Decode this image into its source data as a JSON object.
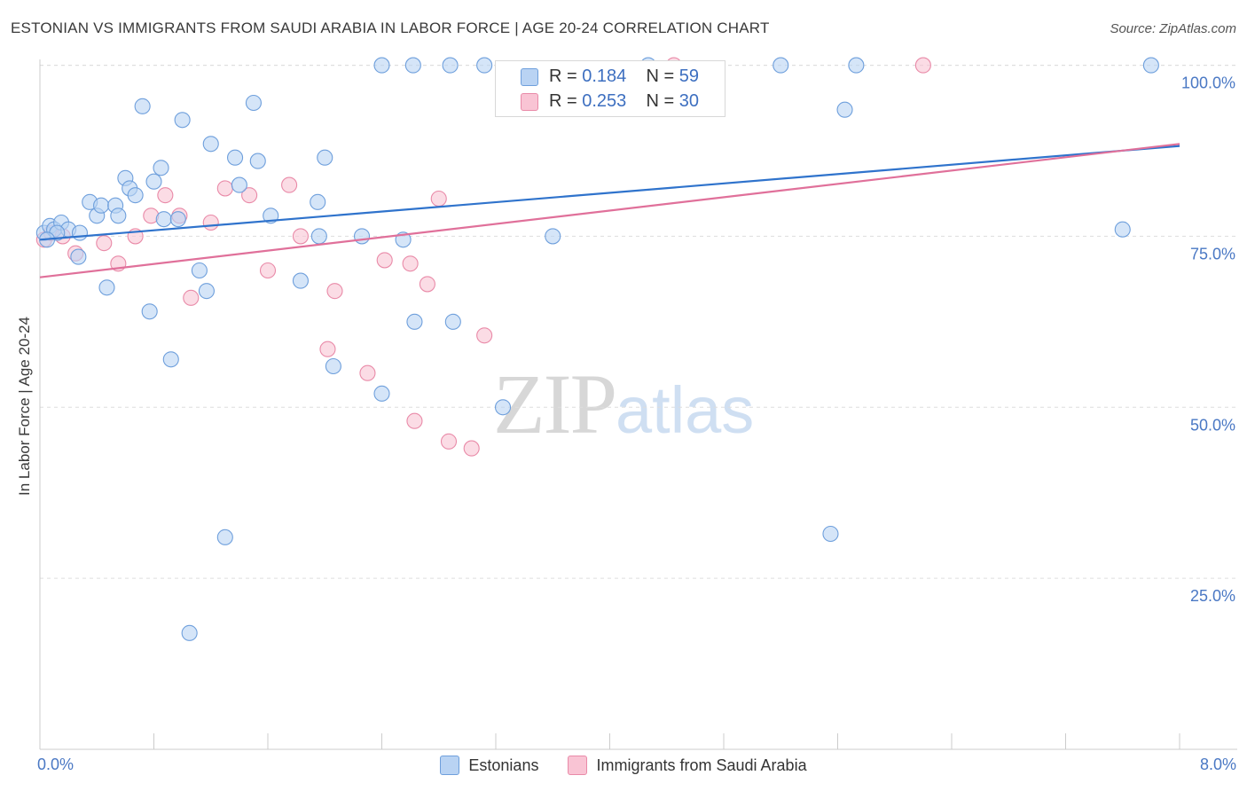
{
  "header": {
    "title": "ESTONIAN VS IMMIGRANTS FROM SAUDI ARABIA IN LABOR FORCE | AGE 20-24 CORRELATION CHART",
    "source": "Source: ZipAtlas.com"
  },
  "watermark": {
    "zip": "ZIP",
    "atlas": "atlas"
  },
  "stats": {
    "row1": {
      "r_label": "R = ",
      "r_value": "0.184",
      "n_label": "N = ",
      "n_value": "59"
    },
    "row2": {
      "r_label": "R = ",
      "r_value": "0.253",
      "n_label": "N = ",
      "n_value": "30"
    }
  },
  "legend": {
    "estonians": "Estonians",
    "saudi": "Immigrants from Saudi Arabia"
  },
  "colors": {
    "blue_fill": "#b9d3f3",
    "blue_stroke": "#6e9fdc",
    "blue_line": "#2f73cc",
    "pink_fill": "#f9c4d4",
    "pink_stroke": "#e98aa8",
    "pink_line": "#e0709a",
    "grid": "#dddddd",
    "axis_label": "#4a78c4"
  },
  "chart_data": {
    "type": "scatter",
    "title": "ESTONIAN VS IMMIGRANTS FROM SAUDI ARABIA IN LABOR FORCE | AGE 20-24 CORRELATION CHART",
    "xlabel": "",
    "ylabel": "In Labor Force | Age 20-24",
    "xlim": [
      0,
      8
    ],
    "ylim": [
      0,
      101.5
    ],
    "x_tick_labels": {
      "min": "0.0%",
      "max": "8.0%"
    },
    "y_ticks": [
      {
        "value": 25,
        "label": "25.0%"
      },
      {
        "value": 50,
        "label": "50.0%"
      },
      {
        "value": 75,
        "label": "75.0%"
      },
      {
        "value": 100,
        "label": "100.0%"
      }
    ],
    "series": [
      {
        "name": "Estonians",
        "R": 0.184,
        "N": 59,
        "trend": {
          "x": [
            0,
            8
          ],
          "y": [
            74.5,
            88.2
          ]
        },
        "points": [
          [
            0.03,
            75.5
          ],
          [
            0.07,
            76.5
          ],
          [
            0.1,
            76
          ],
          [
            0.15,
            77
          ],
          [
            0.2,
            76
          ],
          [
            0.28,
            75.5
          ],
          [
            0.27,
            72
          ],
          [
            0.35,
            80
          ],
          [
            0.4,
            78
          ],
          [
            0.43,
            79.5
          ],
          [
            0.47,
            67.5
          ],
          [
            0.53,
            79.5
          ],
          [
            0.55,
            78
          ],
          [
            0.6,
            83.5
          ],
          [
            0.63,
            82
          ],
          [
            0.67,
            81
          ],
          [
            0.72,
            94
          ],
          [
            0.77,
            64
          ],
          [
            0.8,
            83
          ],
          [
            0.85,
            85
          ],
          [
            0.87,
            77.5
          ],
          [
            0.92,
            57
          ],
          [
            0.97,
            77.5
          ],
          [
            1.0,
            92
          ],
          [
            1.05,
            17
          ],
          [
            1.12,
            70
          ],
          [
            1.17,
            67
          ],
          [
            1.2,
            88.5
          ],
          [
            1.3,
            31
          ],
          [
            1.37,
            86.5
          ],
          [
            1.4,
            82.5
          ],
          [
            1.5,
            94.5
          ],
          [
            1.53,
            86
          ],
          [
            1.62,
            78
          ],
          [
            1.83,
            68.5
          ],
          [
            1.95,
            80
          ],
          [
            1.96,
            75
          ],
          [
            2.0,
            86.5
          ],
          [
            2.06,
            56
          ],
          [
            2.26,
            75
          ],
          [
            2.4,
            100
          ],
          [
            2.4,
            52
          ],
          [
            2.55,
            74.5
          ],
          [
            2.62,
            100
          ],
          [
            2.63,
            62.5
          ],
          [
            2.88,
            100
          ],
          [
            2.9,
            62.5
          ],
          [
            3.12,
            100
          ],
          [
            3.25,
            50
          ],
          [
            3.6,
            75
          ],
          [
            4.27,
            100
          ],
          [
            5.2,
            100
          ],
          [
            5.55,
            31.5
          ],
          [
            5.65,
            93.5
          ],
          [
            5.73,
            100
          ],
          [
            7.6,
            76
          ],
          [
            7.8,
            100
          ],
          [
            0.12,
            75.5
          ],
          [
            0.05,
            74.5
          ]
        ]
      },
      {
        "name": "Immigrants from Saudi Arabia",
        "R": 0.253,
        "N": 30,
        "trend": {
          "x": [
            0,
            8
          ],
          "y": [
            69,
            88.5
          ]
        },
        "points": [
          [
            0.03,
            74.5
          ],
          [
            0.08,
            75.5
          ],
          [
            0.16,
            75
          ],
          [
            0.25,
            72.5
          ],
          [
            0.45,
            74
          ],
          [
            0.55,
            71
          ],
          [
            0.67,
            75
          ],
          [
            0.78,
            78
          ],
          [
            0.88,
            81
          ],
          [
            0.98,
            78
          ],
          [
            1.06,
            66
          ],
          [
            1.2,
            77
          ],
          [
            1.3,
            82
          ],
          [
            1.47,
            81
          ],
          [
            1.6,
            70
          ],
          [
            1.75,
            82.5
          ],
          [
            1.83,
            75
          ],
          [
            2.02,
            58.5
          ],
          [
            2.07,
            67
          ],
          [
            2.3,
            55
          ],
          [
            2.42,
            71.5
          ],
          [
            2.6,
            71
          ],
          [
            2.63,
            48
          ],
          [
            2.72,
            68
          ],
          [
            2.8,
            80.5
          ],
          [
            2.87,
            45
          ],
          [
            3.03,
            44
          ],
          [
            3.12,
            60.5
          ],
          [
            4.45,
            100
          ],
          [
            6.2,
            100
          ]
        ]
      }
    ]
  }
}
